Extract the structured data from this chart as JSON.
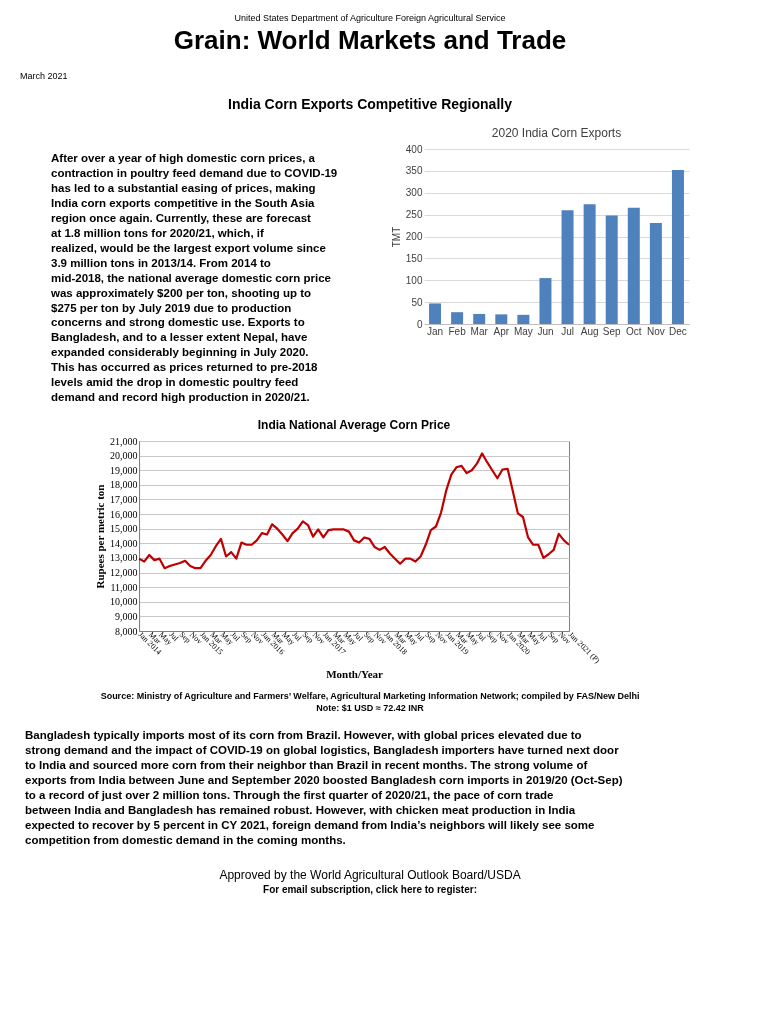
{
  "chart_data": [
    {
      "type": "other",
      "title": "Grain: World Markets and Trade",
      "subtitle": "India Corn Exports Competitive Regionally",
      "annotations": [
        "United States Department of Agriculture Foreign Agricultural Service",
        "March 2021",
        "After over a year of high domestic corn prices, a contraction in poultry feed demand due to COVID-19 has led to a substantial easing of prices, making India corn exports competitive in the South Asia region once again.  Currently, these are forecast at 1.8 million tons for 2020/21, which, if realized, would be the largest export volume since 3.9 million tons in 2013/14.  From 2014 to mid-2018, the national average domestic corn price was approximately $200 per ton, shooting up to $275 per ton by July 2019 due to production concerns and strong domestic use.  Exports to Bangladesh, and to a lesser extent Nepal, have expanded considerably beginning in July 2020.  This has occurred as prices returned to pre-2018 levels amid the drop in domestic poultry feed demand and record high production in 2020/21."
      ]
    },
    {
      "type": "bar",
      "title": "2020 India Corn Exports",
      "ylabel": "TMT",
      "categories": [
        "Jan",
        "Feb",
        "Mar",
        "Apr",
        "May",
        "Jun",
        "Jul",
        "Aug",
        "Sep",
        "Oct",
        "Nov",
        "Dec"
      ],
      "values": [
        47,
        27,
        23,
        22,
        21,
        105,
        260,
        274,
        248,
        266,
        231,
        352
      ],
      "color": "#4f81bd",
      "ylim": [
        0,
        400
      ],
      "yticks": [
        0,
        50,
        100,
        150,
        200,
        250,
        300,
        350,
        400
      ],
      "grid": "y"
    },
    {
      "type": "line",
      "title": "India National Average Corn Price",
      "xlabel": "Month/Year",
      "ylabel": "Rupees per metric ton",
      "categories": [
        "Jan 2014",
        null,
        "Mar",
        null,
        "May",
        null,
        "Jul",
        null,
        "Sep",
        null,
        "Nov",
        null,
        "Jan 2015",
        null,
        "Mar",
        null,
        "May",
        null,
        "Jul",
        null,
        "Sep",
        null,
        "Nov",
        null,
        "Jan 2016",
        null,
        "Mar",
        null,
        "May",
        null,
        "Jul",
        null,
        "Sep",
        null,
        "Nov",
        null,
        "Jan 2017",
        null,
        "Mar",
        null,
        "May",
        null,
        "Jul",
        null,
        "Sep",
        null,
        "Nov",
        null,
        "Jan 2018",
        null,
        "Mar",
        null,
        "May",
        null,
        "Jul",
        null,
        "Sep",
        null,
        "Nov",
        null,
        "Jan 2019",
        null,
        "Mar",
        null,
        "May",
        null,
        "Jul",
        null,
        "Sep",
        null,
        "Nov",
        null,
        "Jan 2020",
        null,
        "Mar",
        null,
        "May",
        null,
        "Jul",
        null,
        "Sep",
        null,
        "Nov",
        null,
        "Jan 2021 (P)"
      ],
      "values": [
        12950,
        12750,
        13200,
        12850,
        12950,
        12300,
        12450,
        12550,
        12650,
        12800,
        12450,
        12300,
        12300,
        12800,
        13200,
        13800,
        14300,
        13100,
        13400,
        12950,
        14050,
        13900,
        13900,
        14200,
        14700,
        14600,
        15300,
        15000,
        14600,
        14150,
        14700,
        15000,
        15500,
        15250,
        14450,
        14950,
        14400,
        14900,
        14950,
        14950,
        14950,
        14800,
        14200,
        14050,
        14400,
        14300,
        13750,
        13550,
        13750,
        13300,
        12950,
        12600,
        12950,
        12950,
        12750,
        13100,
        13900,
        14900,
        15150,
        16100,
        17600,
        18700,
        19200,
        19300,
        18800,
        19000,
        19450,
        20150,
        19550,
        19000,
        18450,
        19050,
        19100,
        17600,
        16050,
        15800,
        14400,
        13900,
        13900,
        13000,
        13250,
        13550,
        14650,
        14200,
        13900
      ],
      "color": "#c00000",
      "ylim": [
        8000,
        21000
      ],
      "yticks": [
        {
          "value": 8000,
          "label": "8,000"
        },
        {
          "value": 9000,
          "label": "9,000"
        },
        {
          "value": 10000,
          "label": "10,000"
        },
        {
          "value": 11000,
          "label": "11,000"
        },
        {
          "value": 12000,
          "label": "12,000"
        },
        {
          "value": 13000,
          "label": "13,000"
        },
        {
          "value": 14000,
          "label": "14,000"
        },
        {
          "value": 15000,
          "label": "15,000"
        },
        {
          "value": 16000,
          "label": "16,000"
        },
        {
          "value": 17000,
          "label": "17,000"
        },
        {
          "value": 18000,
          "label": "18,000"
        },
        {
          "value": 19000,
          "label": "19,000"
        },
        {
          "value": 20000,
          "label": "20,000"
        },
        {
          "value": 21000,
          "label": "21,000"
        }
      ],
      "grid": "y",
      "annotations": [
        "Source: Ministry of Agriculture and Farmers’ Welfare, Agricultural Marketing Information Network; compiled by FAS/New Delhi",
        "Note: $1 USD ≈ 72.42 INR"
      ]
    },
    {
      "type": "other",
      "annotations": [
        "Bangladesh typically imports most of its corn from Brazil.  However, with global prices elevated due to strong demand and the impact of COVID-19 on global logistics, Bangladesh importers have turned next door to India and sourced more corn from their neighbor than Brazil in recent months.  The strong volume of exports from India between June and September 2020 boosted Bangladesh corn imports in 2019/20 (Oct-Sep) to a record of just over 2 million tons.  Through the first quarter of 2020/21, the pace of corn trade between India and Bangladesh has remained robust.  However, with chicken meat production in India expected to recover by 5 percent in CY 2021, foreign demand from India’s neighbors will likely see some competition from domestic demand in the coming months.",
        "Approved by the World Agricultural Outlook Board/USDA",
        "For email subscription, click here to register:"
      ]
    }
  ]
}
